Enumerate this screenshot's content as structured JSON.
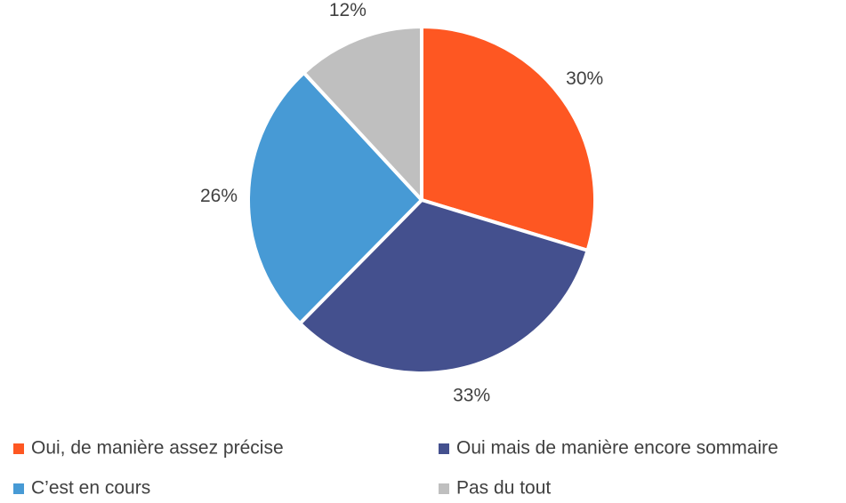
{
  "chart_data": {
    "type": "pie",
    "categories": [
      "Oui, de manière assez précise",
      "Oui mais de manière encore sommaire",
      "C’est en cours",
      "Pas du tout"
    ],
    "values": [
      30,
      33,
      26,
      12
    ],
    "value_labels": [
      "30%",
      "33%",
      "26%",
      "12%"
    ],
    "colors": [
      "#fe5722",
      "#44508e",
      "#479ad5",
      "#bfbfbf"
    ],
    "legend": "bottom"
  }
}
